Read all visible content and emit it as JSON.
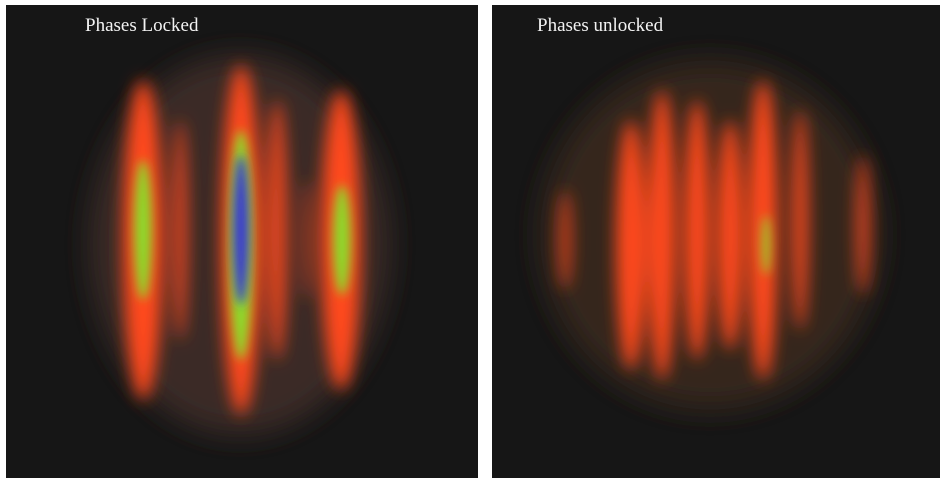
{
  "panels": [
    {
      "label": "Phases Locked"
    },
    {
      "label": "Phases unlocked"
    }
  ]
}
